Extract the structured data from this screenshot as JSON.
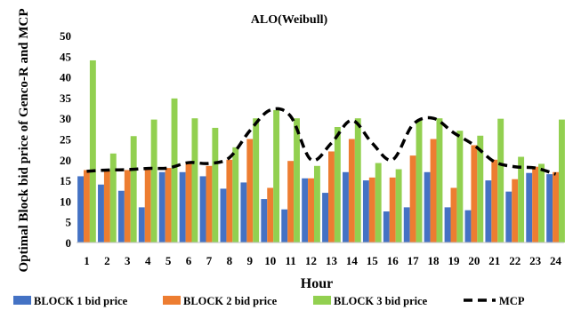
{
  "chart_data": {
    "type": "bar",
    "title": "ALO(Weibull)",
    "xlabel": "Hour",
    "ylabel": "Optimal Block bid price of Genco-R and MCP",
    "ylim": [
      0,
      50
    ],
    "yticks": [
      0,
      5,
      10,
      15,
      20,
      25,
      30,
      35,
      40,
      45,
      50
    ],
    "grid": false,
    "legend_position": "bottom",
    "categories": [
      "1",
      "2",
      "3",
      "4",
      "5",
      "6",
      "7",
      "8",
      "9",
      "10",
      "11",
      "12",
      "13",
      "14",
      "15",
      "16",
      "17",
      "18",
      "19",
      "20",
      "21",
      "22",
      "23",
      "24"
    ],
    "series": [
      {
        "name": "BLOCK 1 bid price",
        "type": "bar",
        "color": "#4472C4",
        "values": [
          16,
          14,
          12.5,
          8.5,
          17,
          17,
          16,
          13,
          14.5,
          10.5,
          8,
          15.5,
          12,
          17,
          15,
          7.5,
          8.5,
          17,
          8.5,
          7.8,
          15,
          12.3,
          16.8,
          16.5
        ]
      },
      {
        "name": "BLOCK 2 bid price",
        "type": "bar",
        "color": "#ED7D31",
        "values": [
          17.5,
          17.5,
          17.5,
          17.8,
          18,
          19.3,
          18.5,
          20,
          25,
          13.2,
          19.7,
          15.5,
          22,
          25,
          15.7,
          15.7,
          21,
          25,
          13.2,
          23.5,
          20,
          15.3,
          18.3,
          17
        ]
      },
      {
        "name": "BLOCK 3 bid price",
        "type": "bar",
        "color": "#92D050",
        "values": [
          44,
          21.5,
          25.7,
          29.7,
          34.8,
          30,
          27.7,
          23,
          30,
          32,
          30,
          18.5,
          27.9,
          30,
          19.2,
          17.7,
          29.6,
          30,
          27,
          25.8,
          29.9,
          20.7,
          19,
          29.7
        ]
      },
      {
        "name": "MCP",
        "type": "line",
        "color": "#000000",
        "values": [
          17.2,
          17.5,
          17.6,
          17.9,
          18,
          19.3,
          19.1,
          20.5,
          27,
          32,
          30.5,
          20,
          24,
          29.5,
          24,
          20,
          28.5,
          30,
          26.5,
          23.5,
          19.5,
          18.3,
          18,
          16.5
        ]
      }
    ]
  }
}
